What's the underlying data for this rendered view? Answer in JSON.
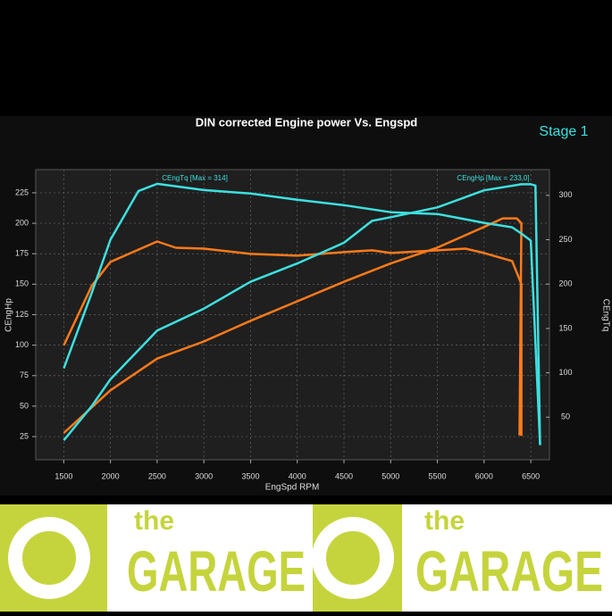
{
  "chart_data": {
    "type": "line",
    "title": "DIN corrected Engine power Vs. Engspd",
    "annotation": "Stage 1",
    "xlabel": "EngSpd RPM",
    "ylabel": "CEngHp",
    "y2label": "CEngTq",
    "xlim": [
      1200,
      6700
    ],
    "xticks": [
      1500,
      2000,
      2500,
      3000,
      3500,
      4000,
      4500,
      5000,
      5500,
      6000,
      6500
    ],
    "ylim": [
      6,
      244
    ],
    "yticks": [
      25,
      50,
      75,
      100,
      125,
      150,
      175,
      200,
      225
    ],
    "y2lim": [
      2,
      329
    ],
    "y2ticks": [
      50,
      100,
      150,
      200,
      250,
      300
    ],
    "grid": true,
    "series_labels": [
      "CEngTq [Max = 314]",
      "CEngHp [Max = 233,0]"
    ],
    "series": [
      {
        "color": "#ff7a1a",
        "axis": "y2",
        "x": [
          1500,
          1800,
          2000,
          2500,
          2700,
          3000,
          3500,
          4000,
          4500,
          4800,
          5000,
          5500,
          5800,
          6000,
          6300,
          6400,
          6400
        ],
        "values": [
          131,
          198,
          225,
          248,
          241,
          240,
          234,
          232,
          236,
          238,
          235,
          238,
          240,
          235,
          226,
          200,
          29
        ]
      },
      {
        "color": "#ff7a1a",
        "axis": "y",
        "x": [
          1500,
          2000,
          2500,
          3000,
          3500,
          4000,
          4500,
          5000,
          5500,
          6000,
          6200,
          6350,
          6400,
          6380
        ],
        "values": [
          28,
          63,
          89,
          103,
          120,
          136,
          152,
          167,
          180,
          197,
          204,
          204,
          200,
          26
        ]
      },
      {
        "color": "#3de0e0",
        "axis": "y2",
        "x": [
          1500,
          1800,
          2000,
          2300,
          2500,
          3000,
          3500,
          4000,
          4500,
          5000,
          5500,
          6000,
          6300,
          6400,
          6500,
          6600
        ],
        "values": [
          105,
          190,
          250,
          305,
          313,
          306,
          302,
          295,
          289,
          281,
          279,
          269,
          264,
          257,
          249,
          19
        ]
      },
      {
        "color": "#3de0e0",
        "axis": "y",
        "x": [
          1500,
          1800,
          2000,
          2500,
          3000,
          3500,
          4000,
          4500,
          4800,
          5000,
          5500,
          6000,
          6400,
          6500,
          6550,
          6600
        ],
        "values": [
          22,
          50,
          72,
          112,
          130,
          152,
          167,
          184,
          202,
          205,
          213,
          227,
          232,
          232,
          231,
          18
        ]
      }
    ]
  },
  "banner": {
    "small": "the",
    "big": "GARAGE"
  }
}
